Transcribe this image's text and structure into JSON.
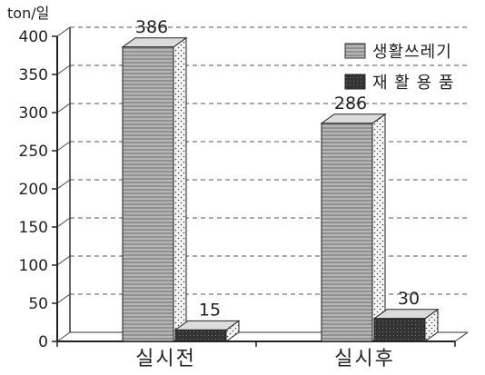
{
  "chart_data": {
    "type": "bar",
    "unit_label": "ton/일",
    "categories": [
      "실시전",
      "실시후"
    ],
    "series": [
      {
        "name": "생활쓰레기",
        "values": [
          386,
          286
        ],
        "color": "#9a9a9a"
      },
      {
        "name": "재 활 용 품",
        "values": [
          15,
          30
        ],
        "color": "#3a3a3a"
      }
    ],
    "ylim": [
      0,
      400
    ],
    "yticks": [
      0,
      50,
      100,
      150,
      200,
      250,
      300,
      350,
      400
    ],
    "grid": true,
    "legend_position": "top-right",
    "style": "3d-bar"
  }
}
